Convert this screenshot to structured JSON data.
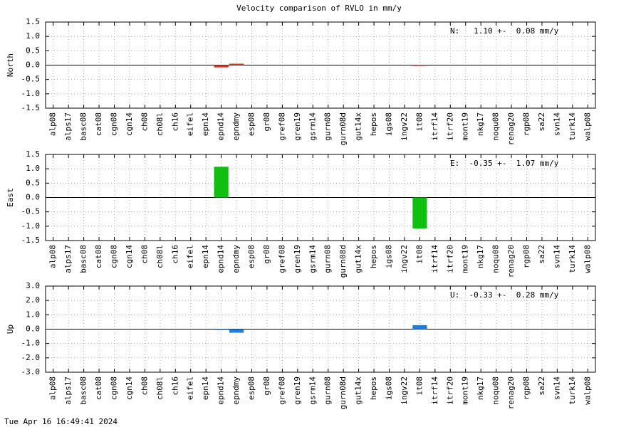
{
  "title": "Velocity comparison of RVLO in mm/y",
  "timestamp": "Tue Apr 16 16:49:41 2024",
  "chart_data": [
    {
      "type": "bar",
      "ylabel": "North",
      "annotation": "N:   1.10 +-  0.08 mm/y",
      "color": "#d83a2e",
      "grid": true,
      "categories": [
        "alp08",
        "alps17",
        "basc08",
        "cat08",
        "cgn08",
        "cgn14",
        "ch08",
        "ch08l",
        "ch16",
        "eifel",
        "epn14",
        "epnd14",
        "epndmy",
        "esp08",
        "gr08",
        "gref08",
        "gren19",
        "gsrm14",
        "gurn08",
        "gurn08d",
        "gut14x",
        "hepos",
        "igs08",
        "ingv22",
        "it08",
        "itrf14",
        "itrf20",
        "mont19",
        "nkg17",
        "noqu08",
        "renag20",
        "rgp08",
        "sa22",
        "svn14",
        "turk14",
        "walp08"
      ],
      "values": [
        null,
        null,
        null,
        null,
        null,
        null,
        null,
        null,
        null,
        null,
        null,
        -0.08,
        0.05,
        null,
        null,
        null,
        null,
        null,
        null,
        null,
        null,
        null,
        null,
        null,
        -0.02,
        null,
        null,
        null,
        null,
        null,
        null,
        null,
        null,
        null,
        null,
        null
      ],
      "ylim": [
        -1.5,
        1.5
      ],
      "yticks": [
        {
          "value": -1.5,
          "label": "-1.5"
        },
        {
          "value": -1,
          "label": "-1.0"
        },
        {
          "value": -0.5,
          "label": "-0.5"
        },
        {
          "value": 0,
          "label": "0.0"
        },
        {
          "value": 0.5,
          "label": "0.5"
        },
        {
          "value": 1,
          "label": "1.0"
        },
        {
          "value": 1.5,
          "label": "1.5"
        }
      ]
    },
    {
      "type": "bar",
      "ylabel": "East",
      "annotation": "E:  -0.35 +-  1.07 mm/y",
      "color": "#10c010",
      "grid": true,
      "categories": [
        "alp08",
        "alps17",
        "basc08",
        "cat08",
        "cgn08",
        "cgn14",
        "ch08",
        "ch08l",
        "ch16",
        "eifel",
        "epn14",
        "epnd14",
        "epndmy",
        "esp08",
        "gr08",
        "gref08",
        "gren19",
        "gsrm14",
        "gurn08",
        "gurn08d",
        "gut14x",
        "hepos",
        "igs08",
        "ingv22",
        "it08",
        "itrf14",
        "itrf20",
        "mont19",
        "nkg17",
        "noqu08",
        "renag20",
        "rgp08",
        "sa22",
        "svn14",
        "turk14",
        "walp08"
      ],
      "values": [
        null,
        null,
        null,
        null,
        null,
        null,
        null,
        null,
        null,
        null,
        null,
        1.07,
        null,
        null,
        null,
        null,
        null,
        null,
        null,
        null,
        null,
        null,
        null,
        null,
        -1.08,
        null,
        null,
        null,
        null,
        null,
        null,
        null,
        null,
        null,
        null,
        null
      ],
      "ylim": [
        -1.5,
        1.5
      ],
      "yticks": [
        {
          "value": -1.5,
          "label": "-1.5"
        },
        {
          "value": -1,
          "label": "-1.0"
        },
        {
          "value": -0.5,
          "label": "-0.5"
        },
        {
          "value": 0,
          "label": "0.0"
        },
        {
          "value": 0.5,
          "label": "0.5"
        },
        {
          "value": 1,
          "label": "1.0"
        },
        {
          "value": 1.5,
          "label": "1.5"
        }
      ]
    },
    {
      "type": "bar",
      "ylabel": "Up",
      "annotation": "U:  -0.33 +-  0.28 mm/y",
      "color": "#1a80e8",
      "grid": true,
      "categories": [
        "alp08",
        "alps17",
        "basc08",
        "cat08",
        "cgn08",
        "cgn14",
        "ch08",
        "ch08l",
        "ch16",
        "eifel",
        "epn14",
        "epnd14",
        "epndmy",
        "esp08",
        "gr08",
        "gref08",
        "gren19",
        "gsrm14",
        "gurn08",
        "gurn08d",
        "gut14x",
        "hepos",
        "igs08",
        "ingv22",
        "it08",
        "itrf14",
        "itrf20",
        "mont19",
        "nkg17",
        "noqu08",
        "renag20",
        "rgp08",
        "sa22",
        "svn14",
        "turk14",
        "walp08"
      ],
      "values": [
        null,
        null,
        null,
        null,
        null,
        null,
        null,
        null,
        null,
        null,
        null,
        -0.05,
        -0.25,
        null,
        null,
        null,
        null,
        null,
        null,
        null,
        null,
        null,
        null,
        null,
        0.28,
        null,
        null,
        null,
        null,
        null,
        null,
        null,
        null,
        null,
        null,
        null
      ],
      "ylim": [
        -3,
        3
      ],
      "yticks": [
        {
          "value": -3,
          "label": "-3.0"
        },
        {
          "value": -2,
          "label": "-2.0"
        },
        {
          "value": -1,
          "label": "-1.0"
        },
        {
          "value": 0,
          "label": "0.0"
        },
        {
          "value": 1,
          "label": "1.0"
        },
        {
          "value": 2,
          "label": "2.0"
        },
        {
          "value": 3,
          "label": "3.0"
        }
      ]
    }
  ]
}
